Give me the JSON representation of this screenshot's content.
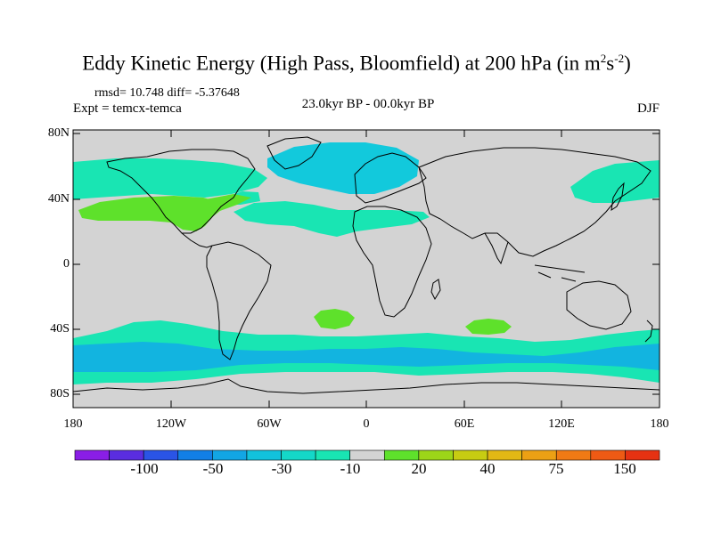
{
  "title": {
    "main": "Eddy Kinetic Energy (High Pass, Bloomfield) at 200 hPa (in m",
    "sup1": "2",
    "mid": "s",
    "sup2": "-2",
    "end": ")"
  },
  "stats": {
    "rmsd": "rmsd= 10.748 diff= -5.37648"
  },
  "expt": "Expt = temcx-temca",
  "period": "23.0kyr BP - 00.0kyr BP",
  "season": "DJF",
  "map": {
    "y_ticks": [
      "80N",
      "40N",
      "0",
      "40S",
      "80S"
    ],
    "x_ticks": [
      "180",
      "120W",
      "60W",
      "0",
      "60E",
      "120E",
      "180"
    ],
    "land_color": "#d3d3d3",
    "ocean_color": "#d3d3d3",
    "field": [
      {
        "name": "north-pacific-negative",
        "level": "-10",
        "color": "#19e5b3"
      },
      {
        "name": "north-pacific-positive",
        "level": "20",
        "color": "#5ee12b"
      },
      {
        "name": "north-atlantic-negative",
        "level": "-20",
        "color": "#12c9dc"
      },
      {
        "name": "southern-ocean-band",
        "level": "-30",
        "color": "#12b4e0"
      },
      {
        "name": "south-atlantic-positive",
        "level": "20",
        "color": "#5ee12b"
      },
      {
        "name": "indian-ocean-positive",
        "level": "20",
        "color": "#5ee12b"
      }
    ]
  },
  "colorbar": {
    "colors": [
      "#8a1ee6",
      "#5a2de0",
      "#2a54e6",
      "#127fe6",
      "#12a6e4",
      "#12c2dc",
      "#14d8c8",
      "#19e5b3",
      "#d3d3d3",
      "#5ee12b",
      "#9cd619",
      "#c7cc12",
      "#e2b814",
      "#eca014",
      "#f07a14",
      "#ee5a14",
      "#e63212"
    ],
    "labels": [
      "-100",
      "-50",
      "-30",
      "-10",
      "20",
      "40",
      "75",
      "150"
    ]
  }
}
